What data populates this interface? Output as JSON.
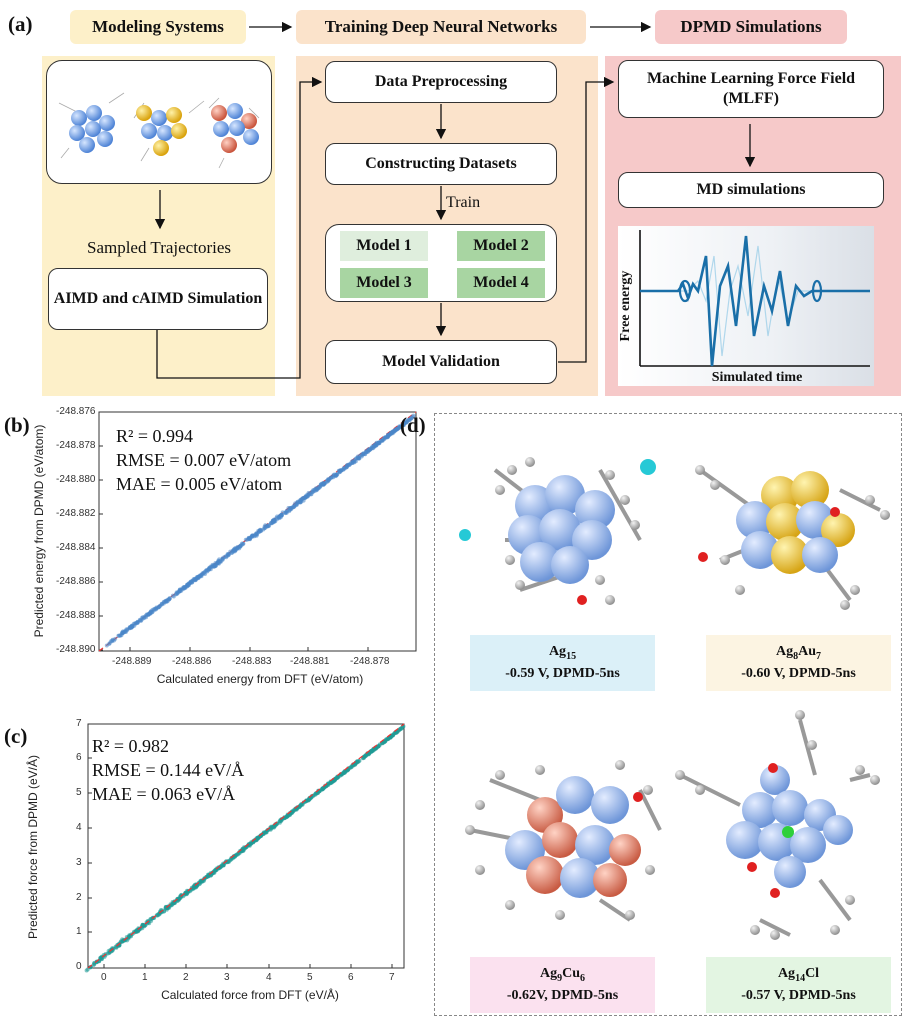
{
  "panel_labels": {
    "a": "(a)",
    "b": "(b)",
    "c": "(c)",
    "d": "(d)"
  },
  "workflow": {
    "headers": [
      "Modeling Systems",
      "Training Deep Neural Networks",
      "DPMD Simulations"
    ],
    "modeling": {
      "sampled_label": "Sampled Trajectories",
      "aimd_box": "AIMD and cAIMD Simulation"
    },
    "training": {
      "preprocess": "Data Preprocessing",
      "datasets": "Constructing Datasets",
      "train_label": "Train",
      "models": [
        "Model 1",
        "Model 2",
        "Model 3",
        "Model 4"
      ],
      "validation": "Model Validation"
    },
    "dpmd": {
      "mlff": "Machine Learning Force Field (MLFF)",
      "md": "MD simulations",
      "ylabel": "Free energy",
      "xlabel": "Simulated time"
    },
    "colors": {
      "modeling": "#fdf0c9",
      "training": "#fbe3cb",
      "dpmd": "#f6c9c9",
      "model_light": "#dfeedd",
      "model_dark": "#a8d5a2"
    }
  },
  "parity_energy": {
    "stats": [
      "R² = 0.994",
      "RMSE = 0.007 eV/atom",
      "MAE =  0.005 eV/atom"
    ],
    "xlabel": "Calculated energy from DFT (eV/atom)",
    "ylabel": "Predicted energy from DPMD (eV/atom)",
    "xticks": [
      "-248.889",
      "-248.886",
      "-248.883",
      "-248.881",
      "-248.878"
    ],
    "yticks": [
      "-248.876",
      "-248.878",
      "-248.880",
      "-248.882",
      "-248.884",
      "-248.886",
      "-248.888",
      "-248.890"
    ],
    "color": "#4a86c8"
  },
  "parity_force": {
    "stats": [
      "R² = 0.982",
      "RMSE = 0.144 eV/Å",
      "MAE =  0.063 eV/Å"
    ],
    "xlabel": "Calculated force from DFT (eV/Å)",
    "ylabel": "Predicted force from DPMD (eV/Å)",
    "xticks": [
      "0",
      "1",
      "2",
      "3",
      "4",
      "5",
      "6",
      "7"
    ],
    "yticks": [
      "7",
      "6",
      "5",
      "4",
      "3",
      "2",
      "1",
      "0"
    ],
    "color": "#1f9a96"
  },
  "clusters": [
    {
      "name_main": "Ag",
      "name_sub": "15",
      "name_rest": "",
      "name_sub2": "",
      "potential": "-0.59 V, DPMD-5ns",
      "bg": "#dbf0f8"
    },
    {
      "name_main": "Ag",
      "name_sub": "8",
      "name_rest": "Au",
      "name_sub2": "7",
      "potential": "-0.60 V, DPMD-5ns",
      "bg": "#fcf4e2"
    },
    {
      "name_main": "Ag",
      "name_sub": "9",
      "name_rest": "Cu",
      "name_sub2": "6",
      "potential": "-0.62V, DPMD-5ns",
      "bg": "#fbe1ef"
    },
    {
      "name_main": "Ag",
      "name_sub": "14",
      "name_rest": "Cl",
      "name_sub2": "",
      "potential": "-0.57 V, DPMD-5ns",
      "bg": "#e3f5e2"
    }
  ]
}
